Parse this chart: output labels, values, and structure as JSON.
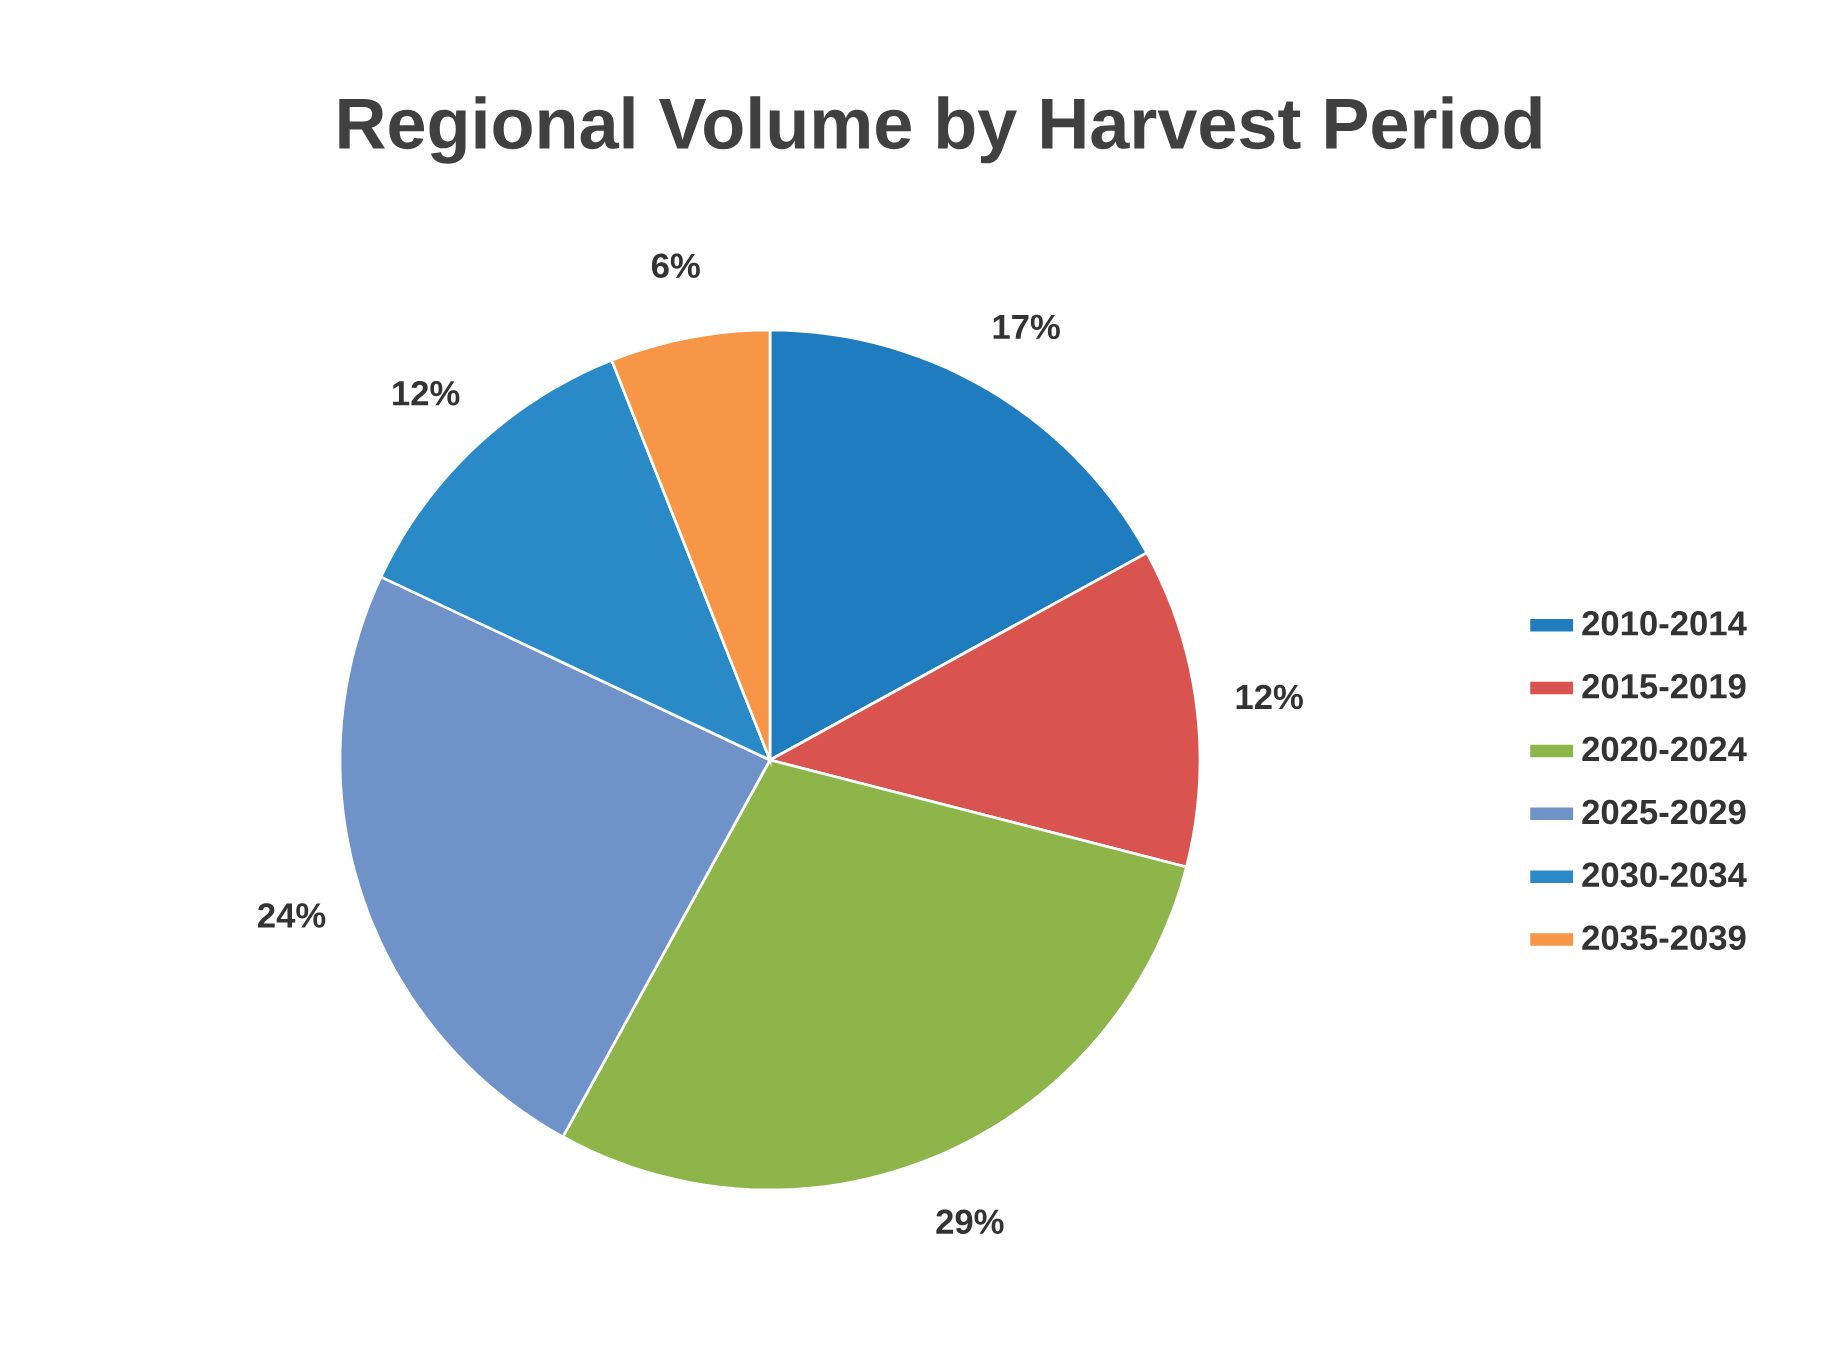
{
  "chart_data": {
    "type": "pie",
    "title": "Regional Volume by Harvest Period",
    "categories": [
      "2010-2014",
      "2015-2019",
      "2020-2024",
      "2025-2029",
      "2030-2034",
      "2035-2039"
    ],
    "values": [
      17,
      12,
      29,
      24,
      12,
      6
    ],
    "value_labels": [
      "17%",
      "12%",
      "29%",
      "24%",
      "12%",
      "6%"
    ],
    "colors": [
      "#1f7dbf",
      "#d9534f",
      "#8db54a",
      "#6f93c9",
      "#2a8ac8",
      "#f79646"
    ],
    "legend": "right"
  }
}
